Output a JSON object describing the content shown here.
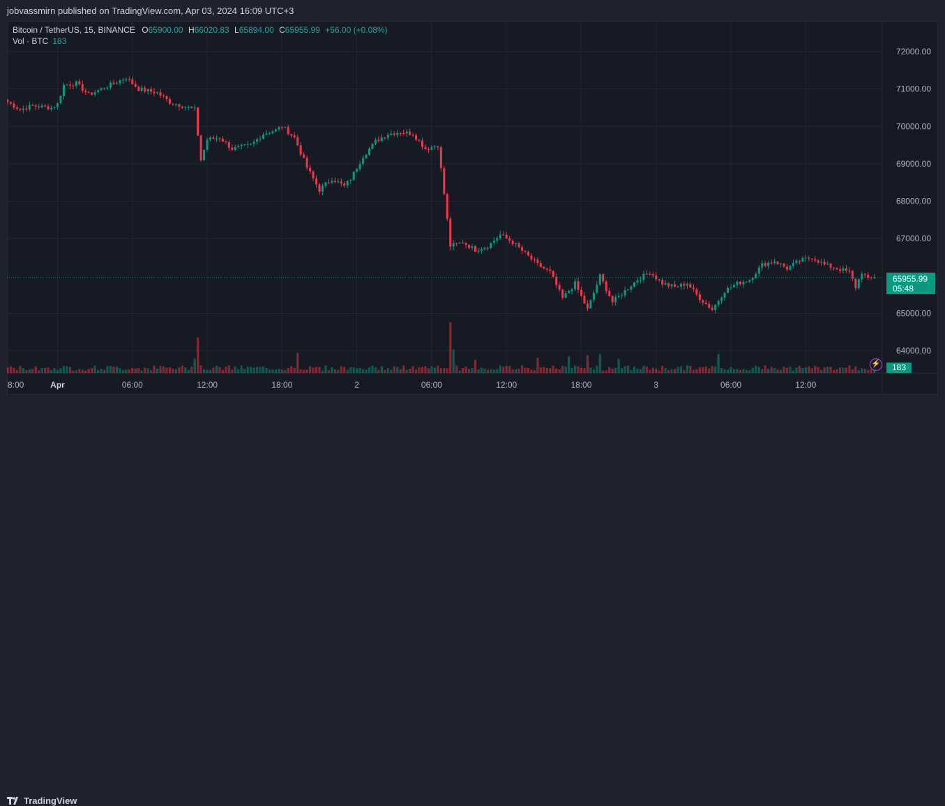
{
  "header": {
    "published_text": "jobvassmirn published on TradingView.com, Apr 03, 2024 16:09 UTC+3"
  },
  "legend": {
    "symbol": "Bitcoin / TetherUS, 15, BINANCE",
    "o_label": "O",
    "o_value": "65900.00",
    "h_label": "H",
    "h_value": "66020.83",
    "l_label": "L",
    "l_value": "65894.00",
    "c_label": "C",
    "c_value": "65955.99",
    "change": "+56.00 (+0.08%)",
    "vol_label": "Vol · BTC",
    "vol_value": "183"
  },
  "price_tag": {
    "price": "65955.99",
    "countdown": "05:48"
  },
  "vol_tag": "183",
  "brand": "TradingView",
  "colors": {
    "up": "#089981",
    "down": "#f23645",
    "grid": "#232733",
    "bg": "#161a25"
  },
  "chart_data": {
    "type": "candlestick",
    "title": "Bitcoin / TetherUS, 15, BINANCE",
    "ylim": [
      63500,
      72800
    ],
    "y_ticks": [
      "72000.00",
      "71000.00",
      "70000.00",
      "69000.00",
      "68000.00",
      "67000.00",
      "65000.00",
      "64000.00"
    ],
    "x_ticks": [
      {
        "label": "8:00",
        "pos": 0,
        "bold": false
      },
      {
        "label": "Apr",
        "pos": 16,
        "bold": true
      },
      {
        "label": "06:00",
        "pos": 40,
        "bold": false
      },
      {
        "label": "12:00",
        "pos": 64,
        "bold": false
      },
      {
        "label": "18:00",
        "pos": 88,
        "bold": false
      },
      {
        "label": "2",
        "pos": 112,
        "bold": false
      },
      {
        "label": "06:00",
        "pos": 136,
        "bold": false
      },
      {
        "label": "12:00",
        "pos": 160,
        "bold": false
      },
      {
        "label": "18:00",
        "pos": 184,
        "bold": false
      },
      {
        "label": "3",
        "pos": 208,
        "bold": false
      },
      {
        "label": "06:00",
        "pos": 232,
        "bold": false
      },
      {
        "label": "12:00",
        "pos": 256,
        "bold": false
      }
    ],
    "last_price": 65955.99,
    "close_path": [
      [
        0,
        70650
      ],
      [
        4,
        70450
      ],
      [
        8,
        70550
      ],
      [
        14,
        70500
      ],
      [
        16,
        70600
      ],
      [
        18,
        71100
      ],
      [
        22,
        71150
      ],
      [
        26,
        70850
      ],
      [
        30,
        71000
      ],
      [
        34,
        71150
      ],
      [
        38,
        71300
      ],
      [
        42,
        71000
      ],
      [
        48,
        70900
      ],
      [
        52,
        70650
      ],
      [
        58,
        70500
      ],
      [
        60,
        70450
      ],
      [
        62,
        69100
      ],
      [
        64,
        69650
      ],
      [
        68,
        69700
      ],
      [
        72,
        69400
      ],
      [
        78,
        69500
      ],
      [
        82,
        69800
      ],
      [
        86,
        69900
      ],
      [
        88,
        70000
      ],
      [
        92,
        69700
      ],
      [
        96,
        68900
      ],
      [
        100,
        68300
      ],
      [
        104,
        68600
      ],
      [
        108,
        68400
      ],
      [
        110,
        68600
      ],
      [
        114,
        69200
      ],
      [
        118,
        69600
      ],
      [
        122,
        69800
      ],
      [
        126,
        69850
      ],
      [
        130,
        69800
      ],
      [
        134,
        69400
      ],
      [
        138,
        69500
      ],
      [
        140,
        68200
      ],
      [
        142,
        66800
      ],
      [
        146,
        66900
      ],
      [
        150,
        66700
      ],
      [
        154,
        66800
      ],
      [
        158,
        67100
      ],
      [
        162,
        66900
      ],
      [
        166,
        66600
      ],
      [
        170,
        66300
      ],
      [
        174,
        66100
      ],
      [
        178,
        65400
      ],
      [
        182,
        65800
      ],
      [
        186,
        65100
      ],
      [
        190,
        66000
      ],
      [
        194,
        65300
      ],
      [
        198,
        65600
      ],
      [
        202,
        65900
      ],
      [
        206,
        66100
      ],
      [
        210,
        65800
      ],
      [
        214,
        65700
      ],
      [
        218,
        65800
      ],
      [
        222,
        65400
      ],
      [
        226,
        65100
      ],
      [
        230,
        65600
      ],
      [
        234,
        65800
      ],
      [
        238,
        65900
      ],
      [
        242,
        66300
      ],
      [
        246,
        66400
      ],
      [
        250,
        66200
      ],
      [
        254,
        66400
      ],
      [
        258,
        66500
      ],
      [
        262,
        66300
      ],
      [
        266,
        66200
      ],
      [
        270,
        66100
      ],
      [
        272,
        65700
      ],
      [
        274,
        66100
      ],
      [
        276,
        65900
      ],
      [
        278,
        65960
      ]
    ],
    "volume_spikes": [
      {
        "i": 61,
        "v": 300
      },
      {
        "i": 93,
        "v": 170
      },
      {
        "i": 142,
        "v": 430
      },
      {
        "i": 143,
        "v": 200
      },
      {
        "i": 150,
        "v": 110
      },
      {
        "i": 170,
        "v": 130
      },
      {
        "i": 180,
        "v": 140
      },
      {
        "i": 186,
        "v": 150
      },
      {
        "i": 190,
        "v": 160
      },
      {
        "i": 196,
        "v": 120
      },
      {
        "i": 228,
        "v": 160
      },
      {
        "i": 60,
        "v": 120
      }
    ],
    "volume_base": 50,
    "seed": 7
  }
}
